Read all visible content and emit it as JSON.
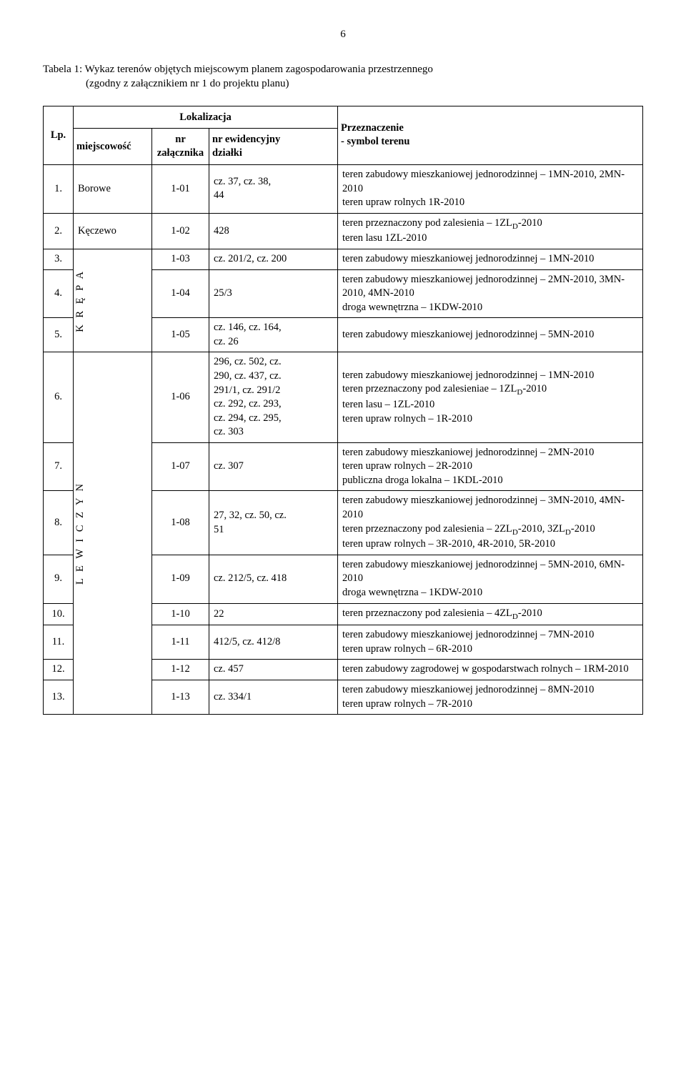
{
  "page_number": "6",
  "caption_line1": "Tabela 1: Wykaz terenów objętych miejscowym planem zagospodarowania przestrzennego",
  "caption_line2": "(zgodny z załącznikiem nr 1 do projektu planu)",
  "headers": {
    "lp": "Lp.",
    "lokalizacja": "Lokalizacja",
    "miejscowosc": "miejscowość",
    "nr_zal": "nr\nzałącznika",
    "nr_ewid": "nr ewidencyjny\ndziałki",
    "przez": "Przeznaczenie\n- symbol terenu"
  },
  "rows": [
    {
      "lp": "1.",
      "miej": "Borowe",
      "zal": "1-01",
      "ewid": "cz. 37, cz. 38,\n44",
      "przez": "teren zabudowy mieszkaniowej jednorodzinnej – 1MN-2010, 2MN-2010\nteren upraw rolnych 1R-2010"
    },
    {
      "lp": "2.",
      "miej": "Kęczewo",
      "zal": "1-02",
      "ewid": "428",
      "przez": "teren przeznaczony pod zalesienia – 1ZLD-2010\nteren lasu 1ZL-2010"
    },
    {
      "lp": "3.",
      "zal": "1-03",
      "ewid": "cz. 201/2, cz. 200",
      "przez": "teren zabudowy mieszkaniowej jednorodzinnej – 1MN-2010"
    },
    {
      "lp": "4.",
      "zal": "1-04",
      "ewid": "25/3",
      "przez": "teren zabudowy mieszkaniowej jednorodzinnej – 2MN-2010, 3MN-2010, 4MN-2010\ndroga wewnętrzna – 1KDW-2010"
    },
    {
      "lp": "5.",
      "zal": "1-05",
      "ewid": "cz. 146, cz. 164,\ncz. 26",
      "przez": "teren zabudowy mieszkaniowej jednorodzinnej – 5MN-2010"
    },
    {
      "lp": "6.",
      "zal": "1-06",
      "ewid": "296, cz. 502, cz.\n290, cz. 437, cz.\n291/1, cz. 291/2\ncz. 292, cz. 293,\ncz. 294, cz. 295,\ncz. 303",
      "przez": "teren zabudowy mieszkaniowej jednorodzinnej – 1MN-2010\nteren przeznaczony pod zalesieniae – 1ZLD-2010\nteren lasu – 1ZL-2010\nteren upraw rolnych – 1R-2010"
    },
    {
      "lp": "7.",
      "zal": "1-07",
      "ewid": "cz. 307",
      "przez": "teren zabudowy mieszkaniowej jednorodzinnej – 2MN-2010\nteren upraw rolnych – 2R-2010\npubliczna droga lokalna – 1KDL-2010"
    },
    {
      "lp": "8.",
      "zal": "1-08",
      "ewid": "27, 32, cz. 50, cz.\n51",
      "przez": "teren zabudowy mieszkaniowej jednorodzinnej – 3MN-2010, 4MN-2010\nteren przeznaczony pod zalesienia – 2ZLD-2010, 3ZLD-2010\nteren upraw rolnych – 3R-2010, 4R-2010, 5R-2010"
    },
    {
      "lp": "9.",
      "zal": "1-09",
      "ewid": "cz. 212/5, cz. 418",
      "przez": "teren zabudowy mieszkaniowej jednorodzinnej – 5MN-2010, 6MN-2010\ndroga wewnętrzna – 1KDW-2010"
    },
    {
      "lp": "10.",
      "zal": "1-10",
      "ewid": "22",
      "przez": "teren przeznaczony pod zalesienia – 4ZLD-2010"
    },
    {
      "lp": "11.",
      "zal": "1-11",
      "ewid": "412/5, cz. 412/8",
      "przez": "teren zabudowy mieszkaniowej jednorodzinnej – 7MN-2010\nteren upraw rolnych – 6R-2010"
    },
    {
      "lp": "12.",
      "zal": "1-12",
      "ewid": "cz. 457",
      "przez": "teren zabudowy zagrodowej w gospodarstwach rolnych – 1RM-2010"
    },
    {
      "lp": "13.",
      "zal": "1-13",
      "ewid": "cz. 334/1",
      "przez": "teren zabudowy mieszkaniowej jednorodzinnej – 8MN-2010\nteren upraw rolnych – 7R-2010"
    }
  ],
  "vertical_labels": {
    "krepa": "K R Ę P A",
    "lewiczyn": "L E W I C Z Y N"
  }
}
